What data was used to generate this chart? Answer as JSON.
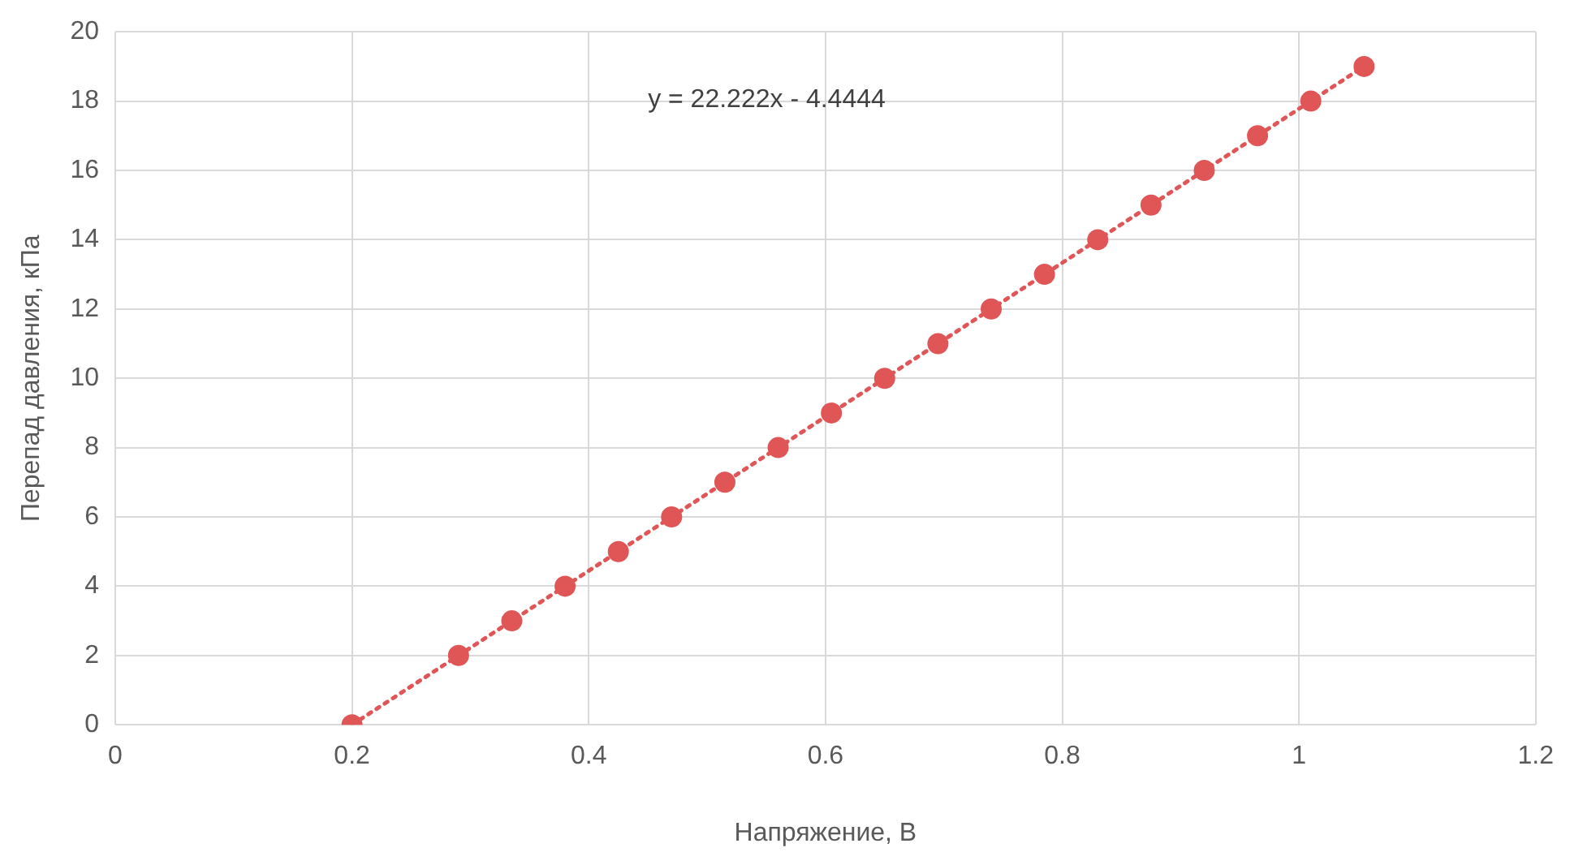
{
  "chart_data": {
    "type": "scatter",
    "xlabel": "Напряжение, В",
    "ylabel": "Перепад давления, кПа",
    "annotations": [
      "y = 22.222x - 4.4444"
    ],
    "xlim": [
      0,
      1.2
    ],
    "xticks": [
      0,
      0.2,
      0.4,
      0.6,
      0.8,
      1,
      1.2
    ],
    "ylim": [
      0,
      20
    ],
    "yticks": [
      0,
      2,
      4,
      6,
      8,
      10,
      12,
      14,
      16,
      18,
      20
    ],
    "grid": true,
    "legend": false,
    "marker": "circle",
    "series": [
      {
        "color": "#e05656",
        "x": [
          0.2,
          0.29,
          0.335,
          0.38,
          0.425,
          0.47,
          0.515,
          0.56,
          0.605,
          0.65,
          0.695,
          0.74,
          0.785,
          0.83,
          0.875,
          0.92,
          0.965,
          1.01,
          1.055
        ],
        "values": [
          0,
          2,
          3,
          4,
          5,
          6,
          7,
          8,
          9,
          10,
          11,
          12,
          13,
          14,
          15,
          16,
          17,
          18,
          19
        ]
      },
      {
        "type": "line",
        "color": "#e05656",
        "line_style": "dotted",
        "marker": "none",
        "x": [
          0.2,
          1.055
        ],
        "values": [
          0,
          19
        ]
      }
    ]
  }
}
